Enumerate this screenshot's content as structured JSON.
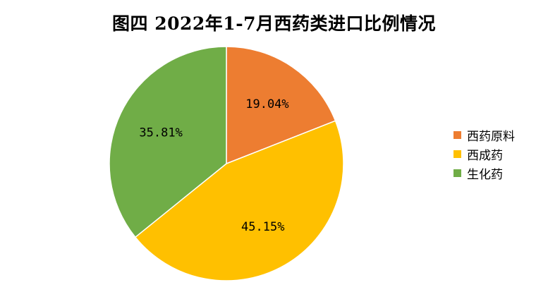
{
  "chart_data": {
    "type": "pie",
    "title": "图四 2022年1-7月西药类进口比例情况",
    "categories": [
      "西药原料",
      "西成药",
      "生化药"
    ],
    "values": [
      19.04,
      45.15,
      35.81
    ],
    "value_labels": [
      "19.04%",
      "45.15%",
      "35.81%"
    ],
    "colors": [
      "#ED7D31",
      "#FFC000",
      "#70AD47"
    ],
    "legend_position": "right",
    "start_angle": "12 o'clock, clockwise"
  }
}
